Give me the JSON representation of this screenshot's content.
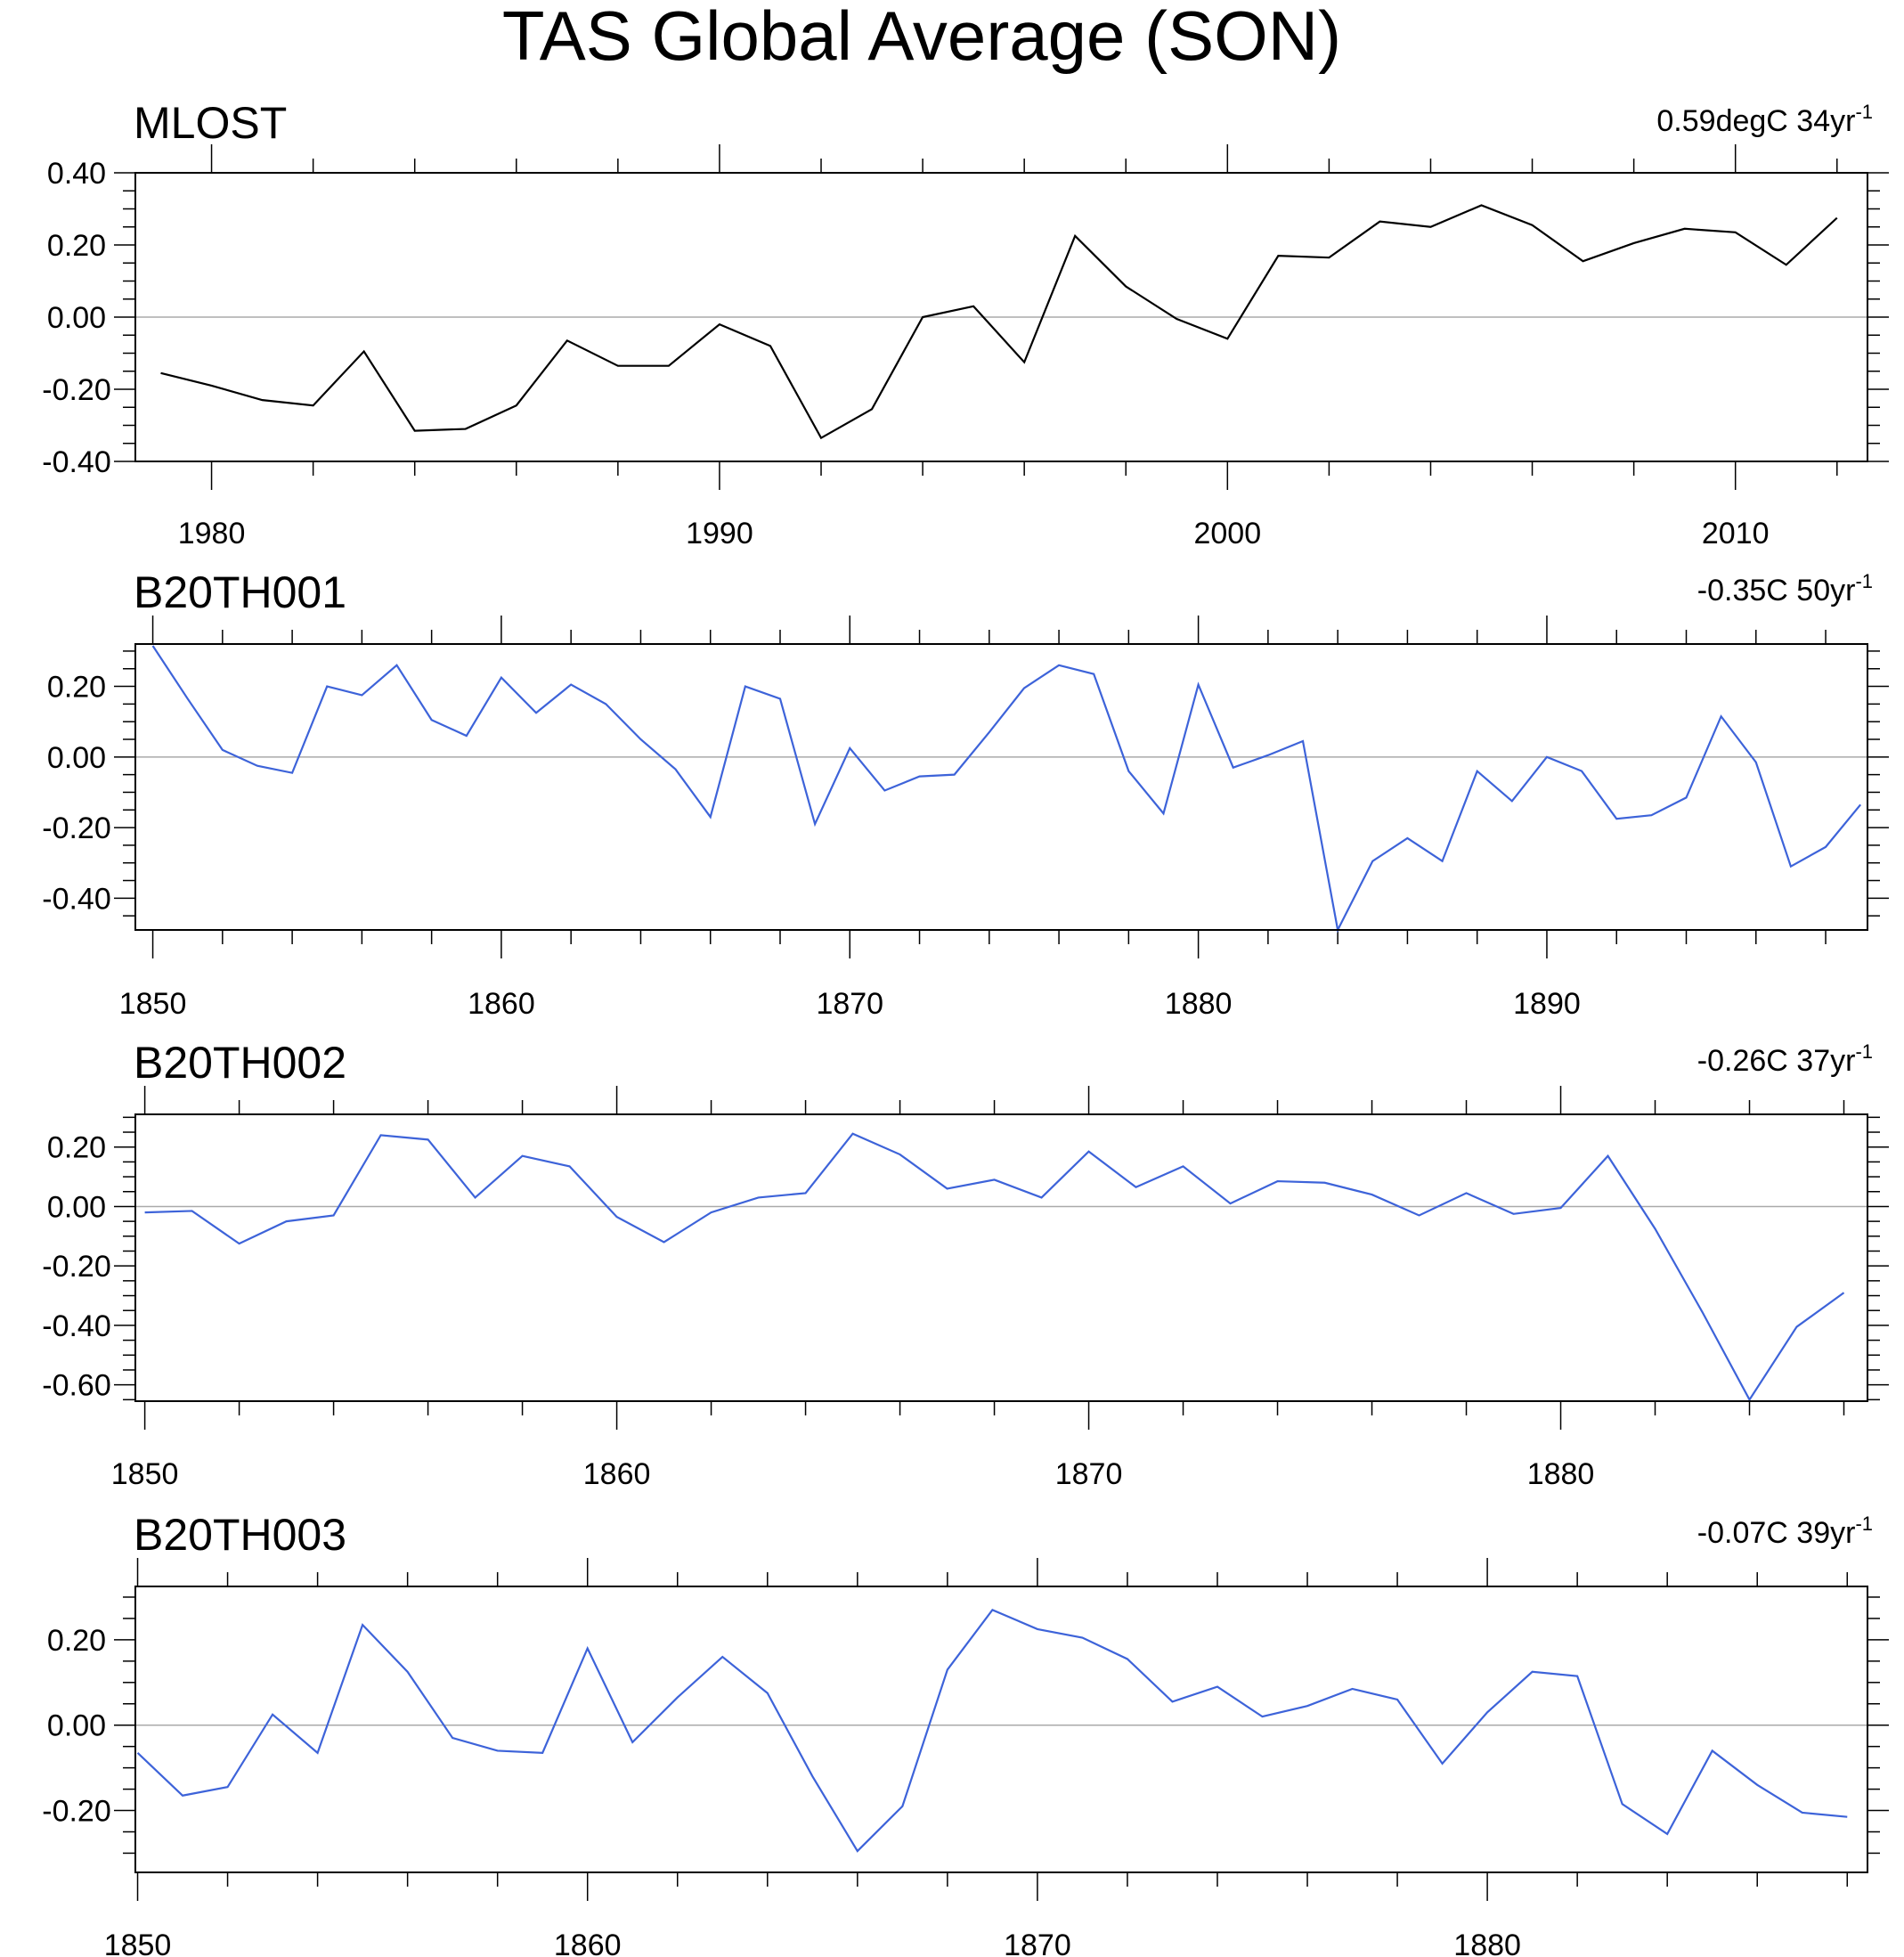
{
  "title": "TAS Global Average (SON)",
  "chart_data": [
    {
      "type": "line",
      "title": "MLOST",
      "trend_text": "0.59degC 34yr",
      "trend_sup": "-1",
      "color": "#000000",
      "x": [
        1979,
        1980,
        1981,
        1982,
        1983,
        1984,
        1985,
        1986,
        1987,
        1988,
        1989,
        1990,
        1991,
        1992,
        1993,
        1994,
        1995,
        1996,
        1997,
        1998,
        1999,
        2000,
        2001,
        2002,
        2003,
        2004,
        2005,
        2006,
        2007,
        2008,
        2009,
        2010,
        2011,
        2012
      ],
      "values": [
        -0.155,
        -0.19,
        -0.23,
        -0.245,
        -0.095,
        -0.315,
        -0.31,
        -0.245,
        -0.065,
        -0.135,
        -0.135,
        -0.02,
        -0.08,
        -0.335,
        -0.255,
        0.0,
        0.03,
        -0.125,
        0.225,
        0.085,
        -0.005,
        -0.06,
        0.17,
        0.165,
        0.265,
        0.25,
        0.31,
        0.255,
        0.155,
        0.205,
        0.245,
        0.235,
        0.145,
        0.275
      ],
      "xlim": [
        1978.5,
        2012.6
      ],
      "ylim": [
        -0.4,
        0.4
      ],
      "xticks": [
        1980,
        1990,
        2000,
        2010
      ],
      "xtick_labels": [
        "1980",
        "1990",
        "2000",
        "2010"
      ],
      "yticks": [
        0.4,
        0.2,
        0.0,
        -0.2,
        -0.4
      ],
      "ytick_labels": [
        "0.40",
        "0.20",
        "0.00",
        "-0.20",
        "-0.40"
      ]
    },
    {
      "type": "line",
      "title": "B20TH001",
      "trend_text": "-0.35C 50yr",
      "trend_sup": "-1",
      "color": "#3d63d9",
      "x": [
        1850,
        1851,
        1852,
        1853,
        1854,
        1855,
        1856,
        1857,
        1858,
        1859,
        1860,
        1861,
        1862,
        1863,
        1864,
        1865,
        1866,
        1867,
        1868,
        1869,
        1870,
        1871,
        1872,
        1873,
        1874,
        1875,
        1876,
        1877,
        1878,
        1879,
        1880,
        1881,
        1882,
        1883,
        1884,
        1885,
        1886,
        1887,
        1888,
        1889,
        1890,
        1891,
        1892,
        1893,
        1894,
        1895,
        1896,
        1897,
        1898,
        1899
      ],
      "values": [
        0.315,
        0.165,
        0.02,
        -0.025,
        -0.045,
        0.2,
        0.175,
        0.26,
        0.105,
        0.06,
        0.225,
        0.125,
        0.205,
        0.15,
        0.05,
        -0.035,
        -0.17,
        0.2,
        0.165,
        -0.19,
        0.025,
        -0.095,
        -0.055,
        -0.05,
        0.07,
        0.195,
        0.26,
        0.235,
        -0.04,
        -0.16,
        0.205,
        -0.03,
        0.005,
        0.045,
        -0.49,
        -0.295,
        -0.23,
        -0.295,
        -0.04,
        -0.125,
        0.0,
        -0.04,
        -0.175,
        -0.165,
        -0.115,
        0.115,
        -0.015,
        -0.31,
        -0.255,
        -0.135
      ],
      "xlim": [
        1849.5,
        1899.2
      ],
      "ylim": [
        -0.49,
        0.32
      ],
      "xticks": [
        1850,
        1860,
        1870,
        1880,
        1890
      ],
      "xtick_labels": [
        "1850",
        "1860",
        "1870",
        "1880",
        "1890"
      ],
      "yticks": [
        0.2,
        0.0,
        -0.2,
        -0.4
      ],
      "ytick_labels": [
        "0.20",
        "0.00",
        "-0.20",
        "-0.40"
      ]
    },
    {
      "type": "line",
      "title": "B20TH002",
      "trend_text": "-0.26C 37yr",
      "trend_sup": "-1",
      "color": "#3d63d9",
      "x": [
        1850,
        1851,
        1852,
        1853,
        1854,
        1855,
        1856,
        1857,
        1858,
        1859,
        1860,
        1861,
        1862,
        1863,
        1864,
        1865,
        1866,
        1867,
        1868,
        1869,
        1870,
        1871,
        1872,
        1873,
        1874,
        1875,
        1876,
        1877,
        1878,
        1879,
        1880,
        1881,
        1882,
        1883,
        1884,
        1885,
        1886
      ],
      "values": [
        -0.02,
        -0.015,
        -0.125,
        -0.05,
        -0.03,
        0.24,
        0.225,
        0.03,
        0.17,
        0.135,
        -0.035,
        -0.12,
        -0.02,
        0.03,
        0.045,
        0.245,
        0.175,
        0.06,
        0.09,
        0.03,
        0.185,
        0.065,
        0.135,
        0.01,
        0.085,
        0.08,
        0.04,
        -0.03,
        0.045,
        -0.025,
        -0.005,
        0.17,
        -0.075,
        -0.355,
        -0.65,
        -0.405,
        -0.29
      ],
      "xlim": [
        1849.8,
        1886.5
      ],
      "ylim": [
        -0.655,
        0.31
      ],
      "xticks": [
        1850,
        1860,
        1870,
        1880
      ],
      "xtick_labels": [
        "1850",
        "1860",
        "1870",
        "1880"
      ],
      "yticks": [
        0.2,
        0.0,
        -0.2,
        -0.4,
        -0.6
      ],
      "ytick_labels": [
        "0.20",
        "0.00",
        "-0.20",
        "-0.40",
        "-0.60"
      ]
    },
    {
      "type": "line",
      "title": "B20TH003",
      "trend_text": "-0.07C 39yr",
      "trend_sup": "-1",
      "color": "#3d63d9",
      "x": [
        1850,
        1851,
        1852,
        1853,
        1854,
        1855,
        1856,
        1857,
        1858,
        1859,
        1860,
        1861,
        1862,
        1863,
        1864,
        1865,
        1866,
        1867,
        1868,
        1869,
        1870,
        1871,
        1872,
        1873,
        1874,
        1875,
        1876,
        1877,
        1878,
        1879,
        1880,
        1881,
        1882,
        1883,
        1884,
        1885,
        1886,
        1887,
        1888
      ],
      "values": [
        -0.065,
        -0.165,
        -0.145,
        0.025,
        -0.065,
        0.235,
        0.125,
        -0.03,
        -0.06,
        -0.065,
        0.18,
        -0.04,
        0.065,
        0.16,
        0.075,
        -0.12,
        -0.295,
        -0.19,
        0.13,
        0.27,
        0.225,
        0.205,
        0.155,
        0.055,
        0.09,
        0.02,
        0.045,
        0.085,
        0.06,
        -0.09,
        0.03,
        0.125,
        0.115,
        -0.185,
        -0.255,
        -0.06,
        -0.14,
        -0.205,
        -0.215
      ],
      "xlim": [
        1849.95,
        1888.45
      ],
      "ylim": [
        -0.345,
        0.325
      ],
      "xticks": [
        1850,
        1860,
        1870,
        1880
      ],
      "xtick_labels": [
        "1850",
        "1860",
        "1870",
        "1880"
      ],
      "yticks": [
        0.2,
        0.0,
        -0.2
      ],
      "ytick_labels": [
        "0.20",
        "0.00",
        "-0.20"
      ]
    }
  ]
}
